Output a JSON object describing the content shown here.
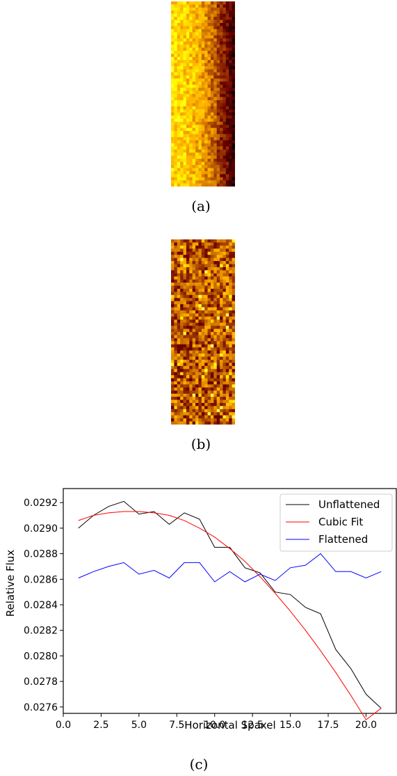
{
  "panels": {
    "a": {
      "caption": "(a)",
      "colormap": "gist_heat",
      "style": "gradient"
    },
    "b": {
      "caption": "(b)",
      "colormap": "gist_heat",
      "style": "flat"
    },
    "c": {
      "caption": "(c)"
    }
  },
  "chart_data": {
    "type": "line",
    "title": "",
    "xlabel": "Horizontal Spaxel",
    "ylabel": "Relative Flux",
    "xlim": [
      0,
      22
    ],
    "ylim": [
      0.02755,
      0.02931
    ],
    "xticks": [
      "0.0",
      "2.5",
      "5.0",
      "7.5",
      "10.0",
      "12.5",
      "15.0",
      "17.5",
      "20.0"
    ],
    "yticks": [
      "0.0276",
      "0.0278",
      "0.0280",
      "0.0282",
      "0.0284",
      "0.0286",
      "0.0288",
      "0.0290",
      "0.0292"
    ],
    "grid": false,
    "legend": "top-right",
    "x": [
      1,
      2,
      3,
      4,
      5,
      6,
      7,
      8,
      9,
      10,
      11,
      12,
      13,
      14,
      15,
      16,
      17,
      18,
      19,
      20,
      21
    ],
    "series": [
      {
        "name": "Unflattened",
        "color": "#000000",
        "values": [
          0.029,
          0.0291,
          0.02917,
          0.02921,
          0.02911,
          0.02913,
          0.02903,
          0.02912,
          0.02907,
          0.02885,
          0.02885,
          0.02869,
          0.02865,
          0.0285,
          0.02848,
          0.02838,
          0.02833,
          0.02805,
          0.0279,
          0.0277,
          0.02759
        ]
      },
      {
        "name": "Cubic Fit",
        "color": "#ff0000",
        "values": [
          0.02906,
          0.0291,
          0.02912,
          0.02913,
          0.02913,
          0.02912,
          0.0291,
          0.02906,
          0.029,
          0.02893,
          0.02884,
          0.02874,
          0.02862,
          0.02849,
          0.02835,
          0.0282,
          0.02804,
          0.02787,
          0.02769,
          0.0275,
          0.02759
        ]
      },
      {
        "name": "Flattened",
        "color": "#0000ff",
        "values": [
          0.02861,
          0.02866,
          0.0287,
          0.02873,
          0.02864,
          0.02867,
          0.02861,
          0.02873,
          0.02873,
          0.02858,
          0.02866,
          0.02858,
          0.02864,
          0.02859,
          0.02869,
          0.02871,
          0.0288,
          0.02866,
          0.02866,
          0.02861,
          0.02866
        ]
      }
    ]
  }
}
